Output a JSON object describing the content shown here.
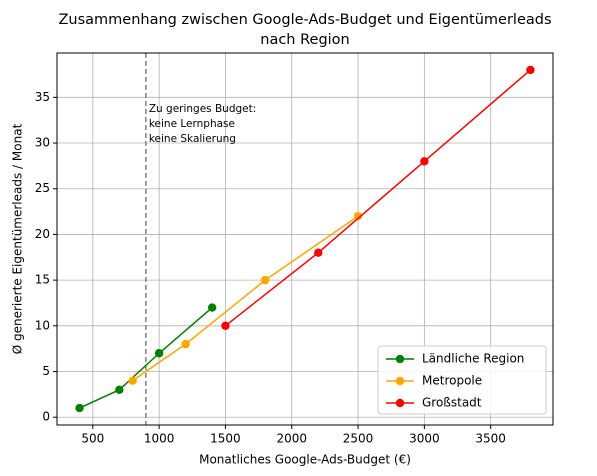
{
  "chart_data": {
    "type": "line",
    "title": [
      "Zusammenhang zwischen Google-Ads-Budget und Eigentümerleads",
      "nach Region"
    ],
    "x_label": "Monatliches Google-Ads-Budget (€)",
    "y_label": "Ø generierte Eigentümerleads / Monat",
    "xlim": [
      230,
      3970
    ],
    "xticks": [
      500,
      1000,
      1500,
      2000,
      2500,
      3000,
      3500
    ],
    "ylim": [
      -0.85,
      39.85
    ],
    "yticks": [
      0,
      5,
      10,
      15,
      20,
      25,
      30,
      35
    ],
    "grid": true,
    "legend": "lower right",
    "series": [
      {
        "name": "Ländliche Region",
        "color": "green",
        "x": [
          400,
          700,
          1000,
          1400
        ],
        "values": [
          1,
          3,
          7,
          12
        ]
      },
      {
        "name": "Metropole",
        "color": "orange",
        "x": [
          800,
          1200,
          1800,
          2500
        ],
        "values": [
          4,
          8,
          15,
          22
        ]
      },
      {
        "name": "Großstadt",
        "color": "red",
        "x": [
          1500,
          2200,
          3000,
          3800
        ],
        "values": [
          10,
          18,
          28,
          38
        ]
      }
    ],
    "vline": {
      "x": 900,
      "color": "gray"
    },
    "annotation": [
      "Zu geringes Budget:",
      "keine Lernphase",
      "keine Skalierung"
    ]
  }
}
